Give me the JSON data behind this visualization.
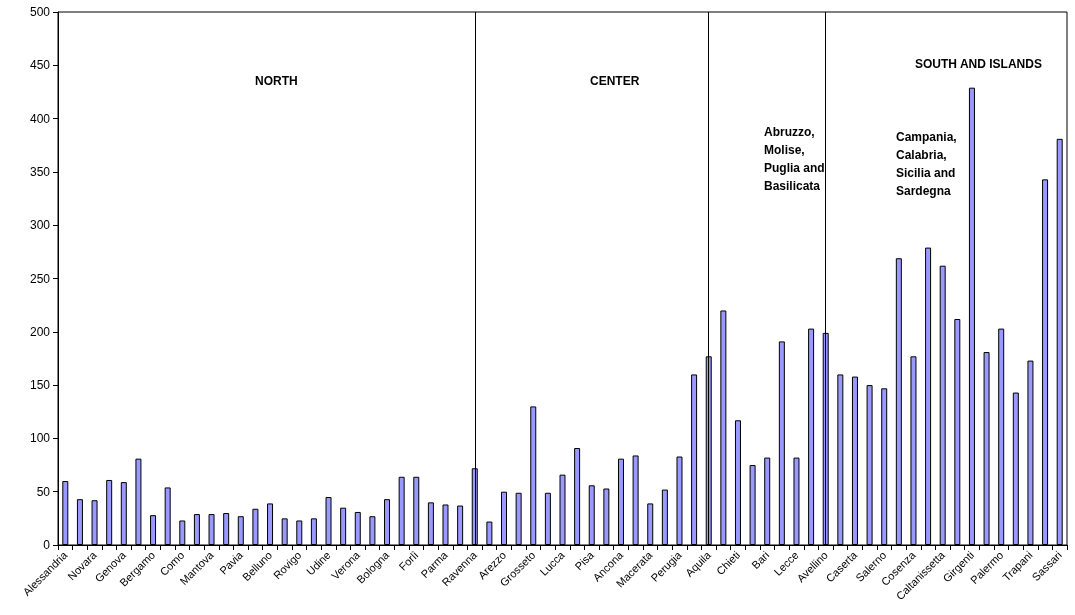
{
  "chart_data": {
    "type": "bar",
    "categories": [
      "Alessandria",
      null,
      "Novara",
      null,
      "Genova",
      null,
      "Bergamo",
      null,
      "Como",
      null,
      "Mantova",
      null,
      "Pavia",
      null,
      "Belluno",
      null,
      "Rovigo",
      null,
      "Udine",
      null,
      "Verona",
      null,
      "Bologna",
      null,
      "Forlì",
      null,
      "Parma",
      null,
      "Ravenna",
      null,
      "Arezzo",
      null,
      "Grosseto",
      null,
      "Lucca",
      null,
      "Pisa",
      null,
      "Ancona",
      null,
      "Macerata",
      null,
      "Perugia",
      null,
      "Aquila",
      null,
      "Chieti",
      null,
      "Bari",
      null,
      "Lecce",
      null,
      "Avellino",
      null,
      "Caserta",
      null,
      "Salerno",
      null,
      "Cosenza",
      null,
      "Caltanissetta",
      null,
      "Girgenti",
      null,
      "Palermo",
      null,
      "Trapani",
      null,
      "Sassari"
    ],
    "values": [
      60,
      43,
      42,
      61,
      59,
      81,
      28,
      54,
      23,
      29,
      29,
      30,
      27,
      34,
      39,
      25,
      23,
      25,
      45,
      35,
      31,
      27,
      43,
      64,
      64,
      40,
      38,
      37,
      72,
      22,
      50,
      49,
      130,
      49,
      66,
      91,
      56,
      53,
      81,
      84,
      39,
      52,
      83,
      160,
      177,
      220,
      117,
      75,
      82,
      191,
      82,
      203,
      199,
      160,
      158,
      150,
      147,
      269,
      177,
      279,
      262,
      212,
      429,
      181,
      203,
      143,
      173,
      343,
      381
    ],
    "color": "#9999ff",
    "ylim": [
      0,
      500
    ],
    "yticks": [
      0,
      50,
      100,
      150,
      200,
      250,
      300,
      350,
      400,
      450,
      500
    ],
    "grid": false,
    "ref_lines": [
      {
        "axis": "x",
        "value": "Ravenna",
        "color": "#000000"
      },
      {
        "axis": "x",
        "value": "Aquila",
        "color": "#000000"
      },
      {
        "axis": "x",
        "value": "Avellino",
        "color": "#000000"
      }
    ],
    "annotations": [
      "NORTH",
      "CENTER",
      "SOUTH AND ISLANDS",
      "Abruzzo, Molise, Puglia and Basilicata",
      "Campania, Calabria, Sicilia and Sardegna"
    ]
  }
}
